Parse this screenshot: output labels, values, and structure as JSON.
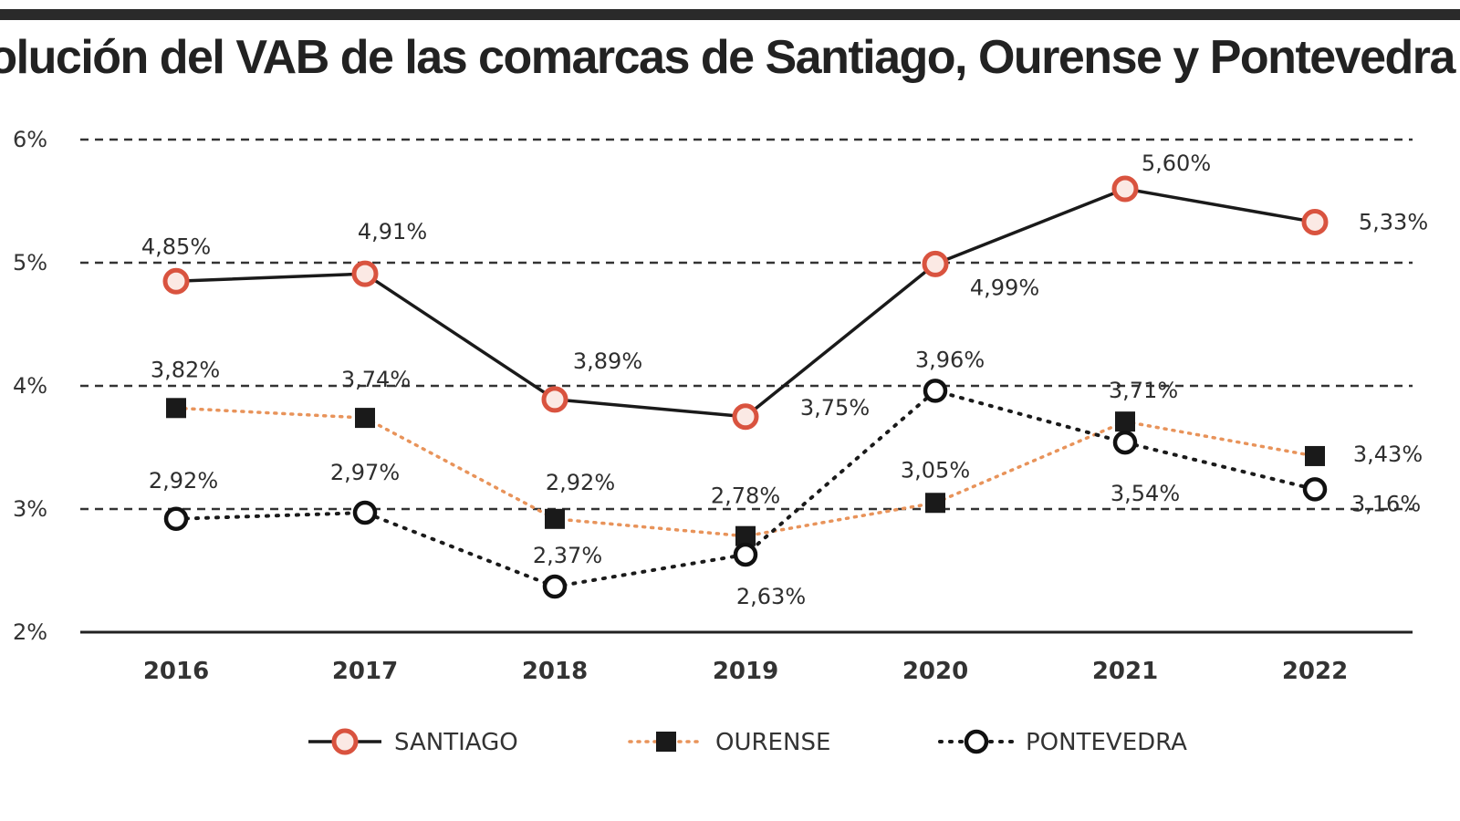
{
  "chart_data": {
    "type": "line",
    "title": "volución del VAB  de las comarcas de Santiago, Ourense y Pontevedra",
    "x": [
      "2016",
      "2017",
      "2018",
      "2019",
      "2020",
      "2021",
      "2022"
    ],
    "ylim": [
      2,
      6
    ],
    "yticks": [
      2,
      3,
      4,
      5,
      6
    ],
    "ytick_labels": [
      "2%",
      "3%",
      "4%",
      "5%",
      "6%"
    ],
    "grid": "horizontal dashed",
    "legend": "bottom",
    "series": [
      {
        "name": "SANTIAGO",
        "style": "solid line, red ring markers",
        "values": [
          4.85,
          4.91,
          3.89,
          3.75,
          4.99,
          5.6,
          5.33
        ],
        "labels": [
          "4,85%",
          "4,91%",
          "3,89%",
          "3,75%",
          "4,99%",
          "5,60%",
          "5,33%"
        ]
      },
      {
        "name": "OURENSE",
        "style": "orange dotted line, square markers",
        "values": [
          3.82,
          3.74,
          2.92,
          2.78,
          3.05,
          3.71,
          3.43
        ],
        "labels": [
          "3,82%",
          "3,74%",
          "2,92%",
          "2,78%",
          "3,05%",
          "3,71%",
          "3,43%"
        ]
      },
      {
        "name": "PONTEVEDRA",
        "style": "black dotted line, hollow circle markers",
        "values": [
          2.92,
          2.97,
          2.37,
          2.63,
          3.96,
          3.54,
          3.16
        ],
        "labels": [
          "2,92%",
          "2,97%",
          "2,37%",
          "2,63%",
          "3,96%",
          "3,54%",
          "3,16%"
        ]
      }
    ]
  },
  "colors": {
    "santiago_line": "#1a1a1a",
    "santiago_marker": "#d9533f",
    "ourense_line": "#e8935a",
    "ourense_marker": "#1a1a1a",
    "pontevedra_line": "#1a1a1a",
    "grid": "#333333"
  }
}
